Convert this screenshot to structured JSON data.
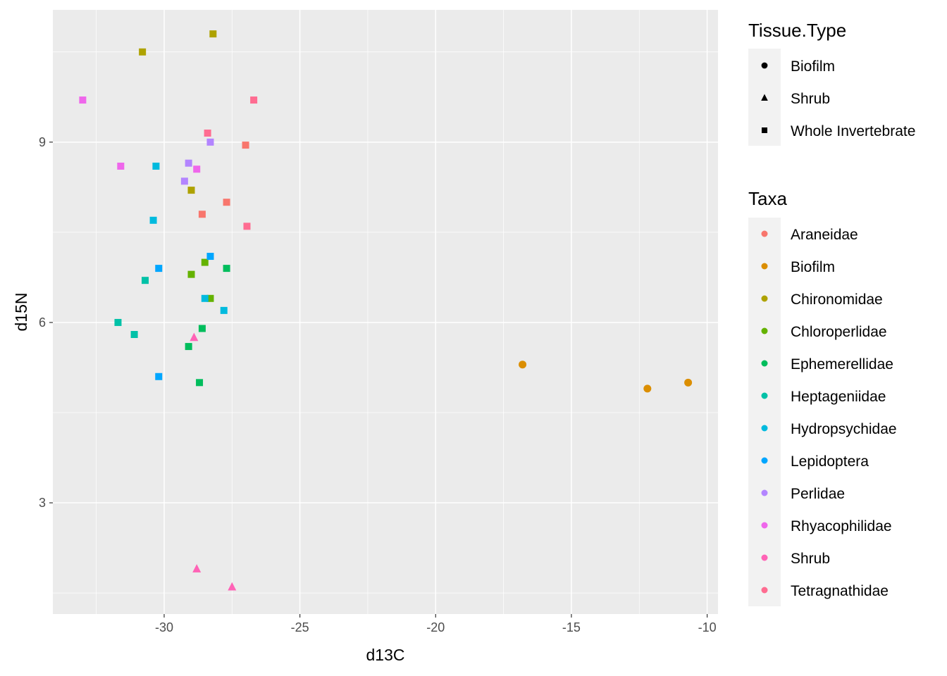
{
  "chart_data": {
    "type": "scatter",
    "xlabel": "d13C",
    "ylabel": "d15N",
    "xlim": [
      -34.1,
      -9.6
    ],
    "ylim": [
      1.15,
      11.2
    ],
    "x_ticks": [
      -30,
      -25,
      -20,
      -15,
      -10
    ],
    "x_tick_labels": [
      "-30",
      "-25",
      "-20",
      "-15",
      "-10"
    ],
    "y_ticks": [
      3,
      6,
      9
    ],
    "y_tick_labels": [
      "3",
      "6",
      "9"
    ],
    "grid": true,
    "legend_position": "right",
    "shape_legend": {
      "title": "Tissue.Type",
      "items": [
        {
          "label": "Biofilm",
          "shape": "circle"
        },
        {
          "label": "Shrub",
          "shape": "triangle"
        },
        {
          "label": "Whole Invertebrate",
          "shape": "square"
        }
      ]
    },
    "color_legend": {
      "title": "Taxa",
      "items": [
        {
          "label": "Araneidae",
          "color": "#F8766D"
        },
        {
          "label": "Biofilm",
          "color": "#DB8E00"
        },
        {
          "label": "Chironomidae",
          "color": "#AEA200"
        },
        {
          "label": "Chloroperlidae",
          "color": "#64B200"
        },
        {
          "label": "Ephemerellidae",
          "color": "#00BD5C"
        },
        {
          "label": "Heptageniidae",
          "color": "#00C1A7"
        },
        {
          "label": "Hydropsychidae",
          "color": "#00BADE"
        },
        {
          "label": "Lepidoptera",
          "color": "#00A6FF"
        },
        {
          "label": "Perlidae",
          "color": "#B385FF"
        },
        {
          "label": "Rhyacophilidae",
          "color": "#EF67EB"
        },
        {
          "label": "Shrub",
          "color": "#FF63B6"
        },
        {
          "label": "Tetragnathidae",
          "color": "#FF6C91"
        }
      ]
    },
    "series": [
      {
        "taxon": "Araneidae",
        "tissue": "Whole Invertebrate",
        "points": [
          [
            -27.0,
            8.95
          ],
          [
            -27.7,
            8.0
          ],
          [
            -28.6,
            7.8
          ]
        ]
      },
      {
        "taxon": "Biofilm",
        "tissue": "Biofilm",
        "points": [
          [
            -16.8,
            5.3
          ],
          [
            -12.2,
            4.9
          ],
          [
            -10.7,
            5.0
          ]
        ]
      },
      {
        "taxon": "Chironomidae",
        "tissue": "Whole Invertebrate",
        "points": [
          [
            -28.2,
            10.8
          ],
          [
            -30.8,
            10.5
          ],
          [
            -29.0,
            8.2
          ]
        ]
      },
      {
        "taxon": "Chloroperlidae",
        "tissue": "Whole Invertebrate",
        "points": [
          [
            -28.5,
            7.0
          ],
          [
            -29.0,
            6.8
          ],
          [
            -28.3,
            6.4
          ]
        ]
      },
      {
        "taxon": "Ephemerellidae",
        "tissue": "Whole Invertebrate",
        "points": [
          [
            -27.7,
            6.9
          ],
          [
            -28.6,
            5.9
          ],
          [
            -29.1,
            5.6
          ],
          [
            -28.7,
            5.0
          ]
        ]
      },
      {
        "taxon": "Heptageniidae",
        "tissue": "Whole Invertebrate",
        "points": [
          [
            -30.7,
            6.7
          ],
          [
            -31.7,
            6.0
          ],
          [
            -31.1,
            5.8
          ]
        ]
      },
      {
        "taxon": "Hydropsychidae",
        "tissue": "Whole Invertebrate",
        "points": [
          [
            -30.3,
            8.6
          ],
          [
            -30.4,
            7.7
          ],
          [
            -28.5,
            6.4
          ],
          [
            -27.8,
            6.2
          ]
        ]
      },
      {
        "taxon": "Lepidoptera",
        "tissue": "Whole Invertebrate",
        "points": [
          [
            -28.3,
            7.1
          ],
          [
            -30.2,
            6.9
          ],
          [
            -30.2,
            5.1
          ]
        ]
      },
      {
        "taxon": "Perlidae",
        "tissue": "Whole Invertebrate",
        "points": [
          [
            -28.3,
            9.0
          ],
          [
            -29.1,
            8.65
          ],
          [
            -29.25,
            8.35
          ]
        ]
      },
      {
        "taxon": "Rhyacophilidae",
        "tissue": "Whole Invertebrate",
        "points": [
          [
            -33.0,
            9.7
          ],
          [
            -31.6,
            8.6
          ],
          [
            -28.8,
            8.55
          ]
        ]
      },
      {
        "taxon": "Shrub",
        "tissue": "Shrub",
        "points": [
          [
            -28.9,
            5.75
          ],
          [
            -28.8,
            1.9
          ],
          [
            -27.5,
            1.6
          ]
        ]
      },
      {
        "taxon": "Tetragnathidae",
        "tissue": "Whole Invertebrate",
        "points": [
          [
            -26.7,
            9.7
          ],
          [
            -28.4,
            9.15
          ],
          [
            -26.95,
            7.6
          ]
        ]
      }
    ]
  }
}
